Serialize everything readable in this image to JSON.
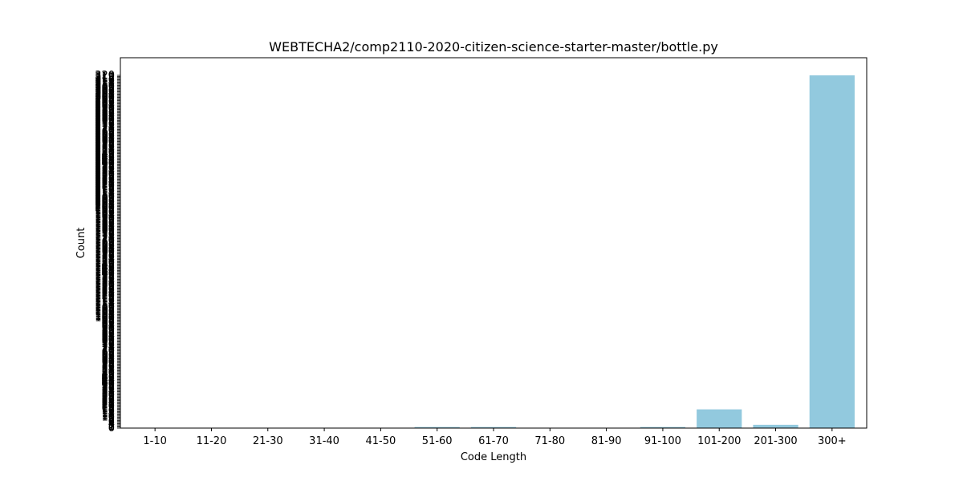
{
  "chart_data": {
    "type": "bar",
    "title": "WEBTECHA2/comp2110-2020-citizen-science-starter-master/bottle.py",
    "xlabel": "Code Length",
    "ylabel": "Count",
    "categories": [
      "1-10",
      "11-20",
      "21-30",
      "31-40",
      "41-50",
      "51-60",
      "61-70",
      "71-80",
      "81-90",
      "91-100",
      "101-200",
      "201-300",
      "300+"
    ],
    "values": [
      0,
      0,
      0,
      0,
      0,
      1,
      1,
      0,
      0,
      1,
      17,
      3,
      320
    ],
    "ylim": [
      0,
      320
    ],
    "bar_color": "#92c9de",
    "grid": false,
    "legend": "none"
  }
}
